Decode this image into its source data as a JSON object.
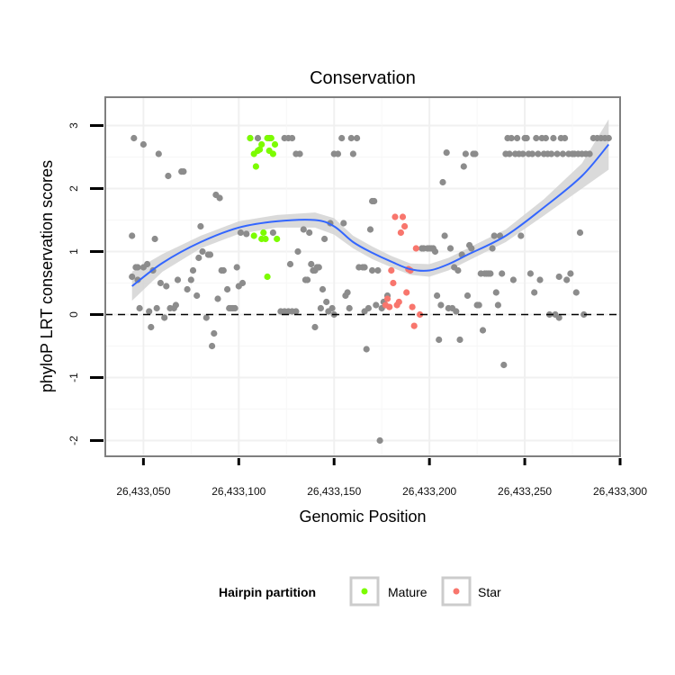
{
  "chart_data": {
    "type": "scatter",
    "title": "Conservation",
    "xlabel": "Genomic Position",
    "ylabel": "phyloP LRT conservation scores",
    "xlim": [
      26433030,
      26433300
    ],
    "ylim": [
      -2.25,
      3.45
    ],
    "x_ticks": [
      26433050,
      26433100,
      26433150,
      26433200,
      26433250,
      26433300
    ],
    "x_tick_labels": [
      "26,433,050",
      "26,433,100",
      "26,433,150",
      "26,433,200",
      "26,433,250",
      "26,433,300"
    ],
    "y_ticks": [
      -2,
      -1,
      0,
      1,
      2,
      3
    ],
    "y_tick_labels": [
      "-2",
      "-1",
      "0",
      "1",
      "2",
      "3"
    ],
    "reference_line": {
      "y": 0,
      "style": "dashed"
    },
    "legend": {
      "title": "Hairpin partition",
      "position": "bottom",
      "entries": [
        {
          "label": "Mature",
          "color": "#7CFC00"
        },
        {
          "label": "Star",
          "color": "#F8766D"
        }
      ]
    },
    "colors": {
      "other": "#8c8c8c",
      "Mature": "#7CFC00",
      "Star": "#F8766D",
      "smooth": "#3366FF",
      "band": "#d3d3d3"
    },
    "series": [
      {
        "name": "Other",
        "points": [
          [
            26433044,
            0.6
          ],
          [
            26433044,
            1.25
          ],
          [
            26433045,
            2.8
          ],
          [
            26433046,
            0.75
          ],
          [
            26433047,
            0.55
          ],
          [
            26433047,
            0.75
          ],
          [
            26433048,
            0.1
          ],
          [
            26433050,
            2.7
          ],
          [
            26433050,
            0.75
          ],
          [
            26433052,
            0.8
          ],
          [
            26433053,
            0.05
          ],
          [
            26433054,
            -0.2
          ],
          [
            26433055,
            0.7
          ],
          [
            26433056,
            1.2
          ],
          [
            26433057,
            0.1
          ],
          [
            26433058,
            2.55
          ],
          [
            26433059,
            0.5
          ],
          [
            26433061,
            -0.05
          ],
          [
            26433062,
            0.45
          ],
          [
            26433063,
            2.2
          ],
          [
            26433064,
            0.1
          ],
          [
            26433066,
            0.1
          ],
          [
            26433067,
            0.15
          ],
          [
            26433068,
            0.55
          ],
          [
            26433070,
            2.27
          ],
          [
            26433071,
            2.27
          ],
          [
            26433073,
            0.4
          ],
          [
            26433075,
            0.55
          ],
          [
            26433076,
            0.7
          ],
          [
            26433078,
            0.3
          ],
          [
            26433079,
            0.9
          ],
          [
            26433080,
            1.4
          ],
          [
            26433081,
            1.0
          ],
          [
            26433083,
            -0.05
          ],
          [
            26433084,
            0.95
          ],
          [
            26433085,
            0.95
          ],
          [
            26433086,
            -0.5
          ],
          [
            26433087,
            -0.3
          ],
          [
            26433088,
            1.9
          ],
          [
            26433089,
            0.25
          ],
          [
            26433090,
            1.85
          ],
          [
            26433091,
            0.7
          ],
          [
            26433092,
            0.7
          ],
          [
            26433094,
            0.4
          ],
          [
            26433095,
            0.1
          ],
          [
            26433096,
            0.1
          ],
          [
            26433097,
            0.1
          ],
          [
            26433098,
            0.1
          ],
          [
            26433099,
            0.75
          ],
          [
            26433100,
            0.45
          ],
          [
            26433101,
            1.3
          ],
          [
            26433102,
            0.5
          ],
          [
            26433104,
            1.28
          ],
          [
            26433106,
            2.8
          ],
          [
            26433110,
            2.8
          ],
          [
            26433116,
            2.8
          ],
          [
            26433118,
            1.3
          ],
          [
            26433124,
            2.8
          ],
          [
            26433126,
            2.8
          ],
          [
            26433128,
            2.8
          ],
          [
            26433130,
            2.55
          ],
          [
            26433132,
            2.55
          ],
          [
            26433122,
            0.05
          ],
          [
            26433124,
            0.05
          ],
          [
            26433126,
            0.05
          ],
          [
            26433128,
            0.05
          ],
          [
            26433130,
            0.05
          ],
          [
            26433127,
            0.8
          ],
          [
            26433131,
            1.0
          ],
          [
            26433134,
            1.35
          ],
          [
            26433135,
            0.55
          ],
          [
            26433136,
            0.55
          ],
          [
            26433137,
            1.3
          ],
          [
            26433138,
            0.8
          ],
          [
            26433139,
            0.7
          ],
          [
            26433140,
            -0.2
          ],
          [
            26433140,
            0.7
          ],
          [
            26433141,
            0.75
          ],
          [
            26433142,
            0.75
          ],
          [
            26433143,
            0.1
          ],
          [
            26433144,
            0.4
          ],
          [
            26433145,
            1.2
          ],
          [
            26433146,
            0.2
          ],
          [
            26433147,
            0.05
          ],
          [
            26433148,
            1.45
          ],
          [
            26433149,
            0.1
          ],
          [
            26433150,
            0.0
          ],
          [
            26433150,
            2.55
          ],
          [
            26433152,
            2.55
          ],
          [
            26433154,
            2.8
          ],
          [
            26433155,
            1.45
          ],
          [
            26433156,
            0.3
          ],
          [
            26433157,
            0.35
          ],
          [
            26433158,
            0.1
          ],
          [
            26433159,
            2.8
          ],
          [
            26433160,
            2.55
          ],
          [
            26433162,
            2.8
          ],
          [
            26433163,
            0.75
          ],
          [
            26433165,
            0.75
          ],
          [
            26433166,
            0.05
          ],
          [
            26433166,
            0.75
          ],
          [
            26433167,
            -0.55
          ],
          [
            26433168,
            0.1
          ],
          [
            26433169,
            1.35
          ],
          [
            26433170,
            0.7
          ],
          [
            26433170,
            1.8
          ],
          [
            26433171,
            1.8
          ],
          [
            26433172,
            0.15
          ],
          [
            26433173,
            0.7
          ],
          [
            26433174,
            -2.0
          ],
          [
            26433175,
            0.1
          ],
          [
            26433176,
            0.2
          ],
          [
            26433178,
            0.3
          ],
          [
            26433196,
            1.05
          ],
          [
            26433197,
            1.05
          ],
          [
            26433199,
            1.05
          ],
          [
            26433200,
            1.05
          ],
          [
            26433201,
            1.05
          ],
          [
            26433202,
            1.05
          ],
          [
            26433203,
            1.0
          ],
          [
            26433204,
            0.3
          ],
          [
            26433205,
            -0.4
          ],
          [
            26433206,
            0.15
          ],
          [
            26433207,
            2.1
          ],
          [
            26433208,
            1.25
          ],
          [
            26433209,
            2.57
          ],
          [
            26433210,
            0.1
          ],
          [
            26433211,
            1.05
          ],
          [
            26433212,
            0.1
          ],
          [
            26433213,
            0.75
          ],
          [
            26433214,
            0.05
          ],
          [
            26433215,
            0.7
          ],
          [
            26433216,
            -0.4
          ],
          [
            26433217,
            0.95
          ],
          [
            26433218,
            2.35
          ],
          [
            26433219,
            2.55
          ],
          [
            26433220,
            0.3
          ],
          [
            26433221,
            1.1
          ],
          [
            26433222,
            1.05
          ],
          [
            26433223,
            2.55
          ],
          [
            26433224,
            2.55
          ],
          [
            26433225,
            0.15
          ],
          [
            26433226,
            0.15
          ],
          [
            26433227,
            0.65
          ],
          [
            26433228,
            -0.25
          ],
          [
            26433229,
            0.65
          ],
          [
            26433230,
            0.65
          ],
          [
            26433231,
            0.65
          ],
          [
            26433232,
            0.65
          ],
          [
            26433233,
            1.05
          ],
          [
            26433234,
            1.25
          ],
          [
            26433235,
            0.35
          ],
          [
            26433236,
            0.15
          ],
          [
            26433237,
            1.25
          ],
          [
            26433238,
            0.65
          ],
          [
            26433239,
            -0.8
          ],
          [
            26433240,
            2.55
          ],
          [
            26433241,
            2.8
          ],
          [
            26433242,
            2.55
          ],
          [
            26433243,
            2.8
          ],
          [
            26433244,
            0.55
          ],
          [
            26433245,
            2.55
          ],
          [
            26433246,
            2.8
          ],
          [
            26433247,
            2.55
          ],
          [
            26433248,
            1.25
          ],
          [
            26433249,
            2.55
          ],
          [
            26433250,
            2.8
          ],
          [
            26433251,
            2.8
          ],
          [
            26433252,
            2.55
          ],
          [
            26433253,
            0.65
          ],
          [
            26433254,
            2.55
          ],
          [
            26433255,
            0.35
          ],
          [
            26433256,
            2.8
          ],
          [
            26433257,
            2.55
          ],
          [
            26433258,
            0.55
          ],
          [
            26433259,
            2.8
          ],
          [
            26433260,
            2.55
          ],
          [
            26433261,
            2.8
          ],
          [
            26433262,
            2.55
          ],
          [
            26433263,
            0.0
          ],
          [
            26433264,
            2.55
          ],
          [
            26433265,
            2.8
          ],
          [
            26433266,
            0.0
          ],
          [
            26433267,
            2.55
          ],
          [
            26433268,
            0.6
          ],
          [
            26433268,
            -0.05
          ],
          [
            26433269,
            2.8
          ],
          [
            26433270,
            2.55
          ],
          [
            26433271,
            2.8
          ],
          [
            26433272,
            0.55
          ],
          [
            26433273,
            2.55
          ],
          [
            26433274,
            0.65
          ],
          [
            26433275,
            2.55
          ],
          [
            26433276,
            2.55
          ],
          [
            26433277,
            0.35
          ],
          [
            26433278,
            2.55
          ],
          [
            26433279,
            1.3
          ],
          [
            26433280,
            2.55
          ],
          [
            26433281,
            0.0
          ],
          [
            26433282,
            2.55
          ],
          [
            26433284,
            2.55
          ],
          [
            26433286,
            2.8
          ],
          [
            26433288,
            2.8
          ],
          [
            26433290,
            2.8
          ],
          [
            26433292,
            2.8
          ],
          [
            26433294,
            2.8
          ]
        ]
      },
      {
        "name": "Mature",
        "points": [
          [
            26433106,
            2.8
          ],
          [
            26433108,
            2.55
          ],
          [
            26433108,
            1.25
          ],
          [
            26433109,
            2.35
          ],
          [
            26433110,
            2.6
          ],
          [
            26433111,
            2.62
          ],
          [
            26433112,
            2.7
          ],
          [
            26433112,
            1.2
          ],
          [
            26433113,
            1.3
          ],
          [
            26433114,
            1.2
          ],
          [
            26433115,
            2.8
          ],
          [
            26433115,
            0.6
          ],
          [
            26433116,
            2.6
          ],
          [
            26433117,
            2.8
          ],
          [
            26433118,
            2.55
          ],
          [
            26433119,
            2.7
          ],
          [
            26433120,
            1.2
          ]
        ]
      },
      {
        "name": "Star",
        "points": [
          [
            26433177,
            0.15
          ],
          [
            26433178,
            0.25
          ],
          [
            26433179,
            0.12
          ],
          [
            26433180,
            0.7
          ],
          [
            26433181,
            0.5
          ],
          [
            26433182,
            1.55
          ],
          [
            26433183,
            0.15
          ],
          [
            26433184,
            0.2
          ],
          [
            26433185,
            1.3
          ],
          [
            26433186,
            1.55
          ],
          [
            26433187,
            1.4
          ],
          [
            26433188,
            0.35
          ],
          [
            26433189,
            0.72
          ],
          [
            26433190,
            0.7
          ],
          [
            26433191,
            0.12
          ],
          [
            26433192,
            -0.18
          ],
          [
            26433193,
            1.05
          ],
          [
            26433195,
            0.0
          ]
        ]
      }
    ],
    "smooth": {
      "method": "loess",
      "x": [
        26433044,
        26433060,
        26433080,
        26433100,
        26433120,
        26433140,
        26433150,
        26433160,
        26433170,
        26433180,
        26433190,
        26433200,
        26433210,
        26433220,
        26433240,
        26433260,
        26433280,
        26433294
      ],
      "y": [
        0.45,
        0.82,
        1.15,
        1.38,
        1.48,
        1.5,
        1.4,
        1.15,
        0.98,
        0.84,
        0.72,
        0.7,
        0.8,
        0.95,
        1.25,
        1.7,
        2.2,
        2.7
      ],
      "band_lower": [
        0.22,
        0.68,
        1.05,
        1.28,
        1.38,
        1.38,
        1.27,
        1.05,
        0.88,
        0.75,
        0.63,
        0.6,
        0.7,
        0.85,
        1.15,
        1.57,
        2.0,
        2.3
      ],
      "band_upper": [
        0.68,
        0.96,
        1.25,
        1.48,
        1.58,
        1.62,
        1.53,
        1.25,
        1.08,
        0.93,
        0.81,
        0.8,
        0.9,
        1.05,
        1.35,
        1.83,
        2.4,
        3.1
      ]
    }
  }
}
